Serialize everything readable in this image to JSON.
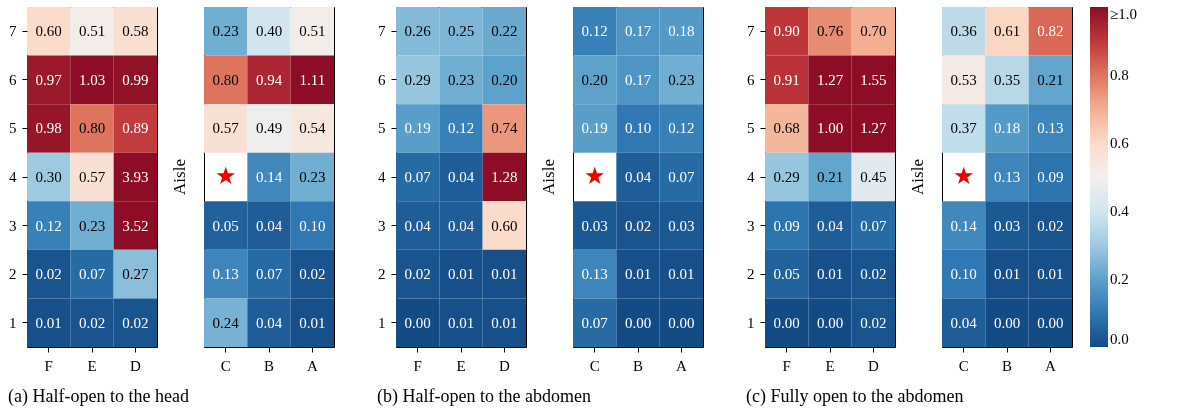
{
  "chart_data": [
    {
      "type": "heatmap",
      "title": "(a) Half-open to the head",
      "annotations": [
        "Aisle"
      ],
      "categories": [
        "F",
        "E",
        "D"
      ],
      "y_categories": [
        "7",
        "6",
        "5",
        "4",
        "3",
        "2",
        "1"
      ],
      "cells": [
        [
          0.6,
          0.51,
          0.58
        ],
        [
          0.97,
          1.03,
          0.99
        ],
        [
          0.98,
          0.8,
          0.89
        ],
        [
          0.3,
          0.57,
          3.93
        ],
        [
          0.12,
          0.23,
          3.52
        ],
        [
          0.02,
          0.07,
          0.27
        ],
        [
          0.01,
          0.02,
          0.02
        ]
      ],
      "cell_labels": [
        [
          "0.60",
          "0.51",
          "0.58"
        ],
        [
          "0.97",
          "1.03",
          "0.99"
        ],
        [
          "0.98",
          "0.80",
          "0.89"
        ],
        [
          "0.30",
          "0.57",
          "3.93"
        ],
        [
          "0.12",
          "0.23",
          "3.52"
        ],
        [
          "0.02",
          "0.07",
          "0.27"
        ],
        [
          "0.01",
          "0.02",
          "0.02"
        ]
      ]
    },
    {
      "type": "heatmap",
      "categories": [
        "C",
        "B",
        "A"
      ],
      "y_categories": [
        "7",
        "6",
        "5",
        "4",
        "3",
        "2",
        "1"
      ],
      "tick_labels": "x",
      "cells": [
        [
          0.23,
          0.4,
          0.51
        ],
        [
          0.8,
          0.94,
          1.11
        ],
        [
          0.57,
          0.49,
          0.54
        ],
        [
          null,
          0.14,
          0.23
        ],
        [
          0.05,
          0.04,
          0.1
        ],
        [
          0.13,
          0.07,
          0.02
        ],
        [
          0.24,
          0.04,
          0.01
        ]
      ],
      "cell_labels": [
        [
          "0.23",
          "0.40",
          "0.51"
        ],
        [
          "0.80",
          "0.94",
          "1.11"
        ],
        [
          "0.57",
          "0.49",
          "0.54"
        ],
        [
          "★",
          "0.14",
          "0.23"
        ],
        [
          "0.05",
          "0.04",
          "0.10"
        ],
        [
          "0.13",
          "0.07",
          "0.02"
        ],
        [
          "0.24",
          "0.04",
          "0.01"
        ]
      ]
    },
    {
      "type": "heatmap",
      "title": "(b) Half-open to the abdomen",
      "annotations": [
        "Aisle"
      ],
      "categories": [
        "F",
        "E",
        "D"
      ],
      "y_categories": [
        "7",
        "6",
        "5",
        "4",
        "3",
        "2",
        "1"
      ],
      "cells": [
        [
          0.26,
          0.25,
          0.22
        ],
        [
          0.29,
          0.23,
          0.2
        ],
        [
          0.19,
          0.12,
          0.74
        ],
        [
          0.07,
          0.04,
          1.28
        ],
        [
          0.04,
          0.04,
          0.6
        ],
        [
          0.02,
          0.01,
          0.01
        ],
        [
          0.0,
          0.01,
          0.01
        ]
      ],
      "cell_labels": [
        [
          "0.26",
          "0.25",
          "0.22"
        ],
        [
          "0.29",
          "0.23",
          "0.20"
        ],
        [
          "0.19",
          "0.12",
          "0.74"
        ],
        [
          "0.07",
          "0.04",
          "1.28"
        ],
        [
          "0.04",
          "0.04",
          "0.60"
        ],
        [
          "0.02",
          "0.01",
          "0.01"
        ],
        [
          "0.00",
          "0.01",
          "0.01"
        ]
      ]
    },
    {
      "type": "heatmap",
      "categories": [
        "C",
        "B",
        "A"
      ],
      "y_categories": [
        "7",
        "6",
        "5",
        "4",
        "3",
        "2",
        "1"
      ],
      "tick_labels": "x",
      "cells": [
        [
          0.12,
          0.17,
          0.18
        ],
        [
          0.2,
          0.17,
          0.23
        ],
        [
          0.19,
          0.1,
          0.12
        ],
        [
          null,
          0.04,
          0.07
        ],
        [
          0.03,
          0.02,
          0.03
        ],
        [
          0.13,
          0.01,
          0.01
        ],
        [
          0.07,
          0.0,
          0.0
        ]
      ],
      "cell_labels": [
        [
          "0.12",
          "0.17",
          "0.18"
        ],
        [
          "0.20",
          "0.17",
          "0.23"
        ],
        [
          "0.19",
          "0.10",
          "0.12"
        ],
        [
          "★",
          "0.04",
          "0.07"
        ],
        [
          "0.03",
          "0.02",
          "0.03"
        ],
        [
          "0.13",
          "0.01",
          "0.01"
        ],
        [
          "0.07",
          "0.00",
          "0.00"
        ]
      ]
    },
    {
      "type": "heatmap",
      "title": "(c) Fully open to the abdomen",
      "annotations": [
        "Aisle"
      ],
      "categories": [
        "F",
        "E",
        "D"
      ],
      "y_categories": [
        "7",
        "6",
        "5",
        "4",
        "3",
        "2",
        "1"
      ],
      "cells": [
        [
          0.9,
          0.76,
          0.7
        ],
        [
          0.91,
          1.27,
          1.55
        ],
        [
          0.68,
          1.0,
          1.27
        ],
        [
          0.29,
          0.21,
          0.45
        ],
        [
          0.09,
          0.04,
          0.07
        ],
        [
          0.05,
          0.01,
          0.02
        ],
        [
          0.0,
          0.0,
          0.02
        ]
      ],
      "cell_labels": [
        [
          "0.90",
          "0.76",
          "0.70"
        ],
        [
          "0.91",
          "1.27",
          "1.55"
        ],
        [
          "0.68",
          "1.00",
          "1.27"
        ],
        [
          "0.29",
          "0.21",
          "0.45"
        ],
        [
          "0.09",
          "0.04",
          "0.07"
        ],
        [
          "0.05",
          "0.01",
          "0.02"
        ],
        [
          "0.00",
          "0.00",
          "0.02"
        ]
      ]
    },
    {
      "type": "heatmap",
      "categories": [
        "C",
        "B",
        "A"
      ],
      "y_categories": [
        "7",
        "6",
        "5",
        "4",
        "3",
        "2",
        "1"
      ],
      "clim": [
        0,
        1
      ],
      "tick_labels": "x",
      "cells": [
        [
          0.36,
          0.61,
          0.82
        ],
        [
          0.53,
          0.35,
          0.21
        ],
        [
          0.37,
          0.18,
          0.13
        ],
        [
          null,
          0.13,
          0.09
        ],
        [
          0.14,
          0.03,
          0.02
        ],
        [
          0.1,
          0.01,
          0.01
        ],
        [
          0.04,
          0.0,
          0.0
        ]
      ],
      "cell_labels": [
        [
          "0.36",
          "0.61",
          "0.82"
        ],
        [
          "0.53",
          "0.35",
          "0.21"
        ],
        [
          "0.37",
          "0.18",
          "0.13"
        ],
        [
          "★",
          "0.13",
          "0.09"
        ],
        [
          "0.14",
          "0.03",
          "0.02"
        ],
        [
          "0.10",
          "0.01",
          "0.01"
        ],
        [
          "0.04",
          "0.00",
          "0.00"
        ]
      ],
      "cticks": [
        {
          "value": 0,
          "label": "0.0"
        },
        0.2,
        0.4,
        0.6,
        0.8,
        {
          "value": 1,
          "label": "≥1.0"
        }
      ]
    }
  ]
}
